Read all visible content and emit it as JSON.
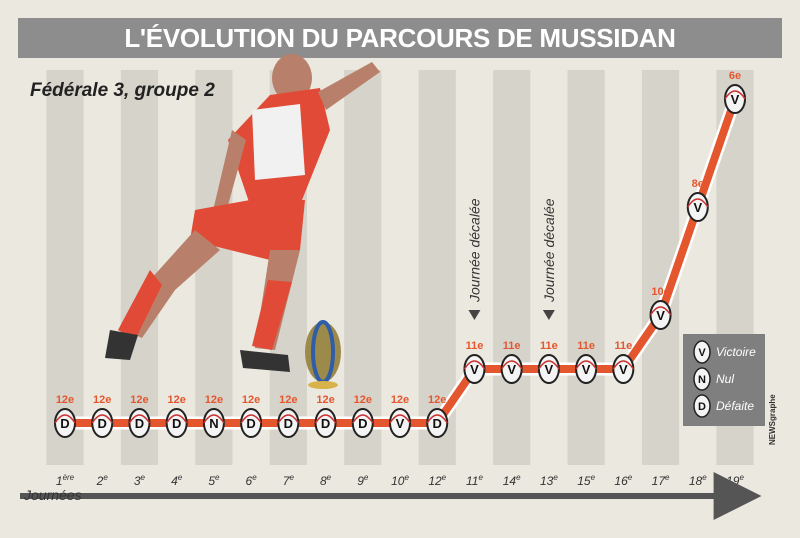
{
  "title": "L'ÉVOLUTION DU PARCOURS DE MUSSIDAN",
  "subtitle": "Fédérale 3, groupe 2",
  "side_credit": "NEWSgraphe",
  "colors": {
    "line": "#e4572e",
    "title_bg": "#8d8d8d",
    "stripe": "#d6d3cb",
    "legend_bg": "#7f7f7f"
  },
  "chart_data": {
    "type": "line",
    "xlabel": "Journées",
    "ylabel": "",
    "y_inverted": true,
    "categories": [
      "1ère",
      "2e",
      "3e",
      "4e",
      "5e",
      "6e",
      "7e",
      "8e",
      "9e",
      "10e",
      "12e",
      "11e",
      "14e",
      "13e",
      "15e",
      "16e",
      "17e",
      "18e",
      "19e"
    ],
    "tick_main": [
      "1",
      "2",
      "3",
      "4",
      "5",
      "6",
      "7",
      "8",
      "9",
      "10",
      "12",
      "11",
      "14",
      "13",
      "15",
      "16",
      "17",
      "18",
      "19"
    ],
    "tick_sup": [
      "ère",
      "e",
      "e",
      "e",
      "e",
      "e",
      "e",
      "e",
      "e",
      "e",
      "e",
      "e",
      "e",
      "e",
      "e",
      "e",
      "e",
      "e",
      "e"
    ],
    "positions": [
      12,
      12,
      12,
      12,
      12,
      12,
      12,
      12,
      12,
      12,
      12,
      11,
      11,
      11,
      11,
      11,
      10,
      8,
      6
    ],
    "position_labels": [
      "12e",
      "12e",
      "12e",
      "12e",
      "12e",
      "12e",
      "12e",
      "12e",
      "12e",
      "12e",
      "12e",
      "11e",
      "11e",
      "11e",
      "11e",
      "11e",
      "10e",
      "8e",
      "6e"
    ],
    "results": [
      "D",
      "D",
      "D",
      "D",
      "N",
      "D",
      "D",
      "D",
      "D",
      "V",
      "D",
      "V",
      "V",
      "V",
      "V",
      "V",
      "V",
      "V",
      "V"
    ],
    "annotations": [
      {
        "text": "Journée décalée",
        "at_index": 11
      },
      {
        "text": "Journée décalée",
        "at_index": 13
      }
    ],
    "legend": [
      {
        "code": "V",
        "label": "Victoire"
      },
      {
        "code": "N",
        "label": "Nul"
      },
      {
        "code": "D",
        "label": "Défaite"
      }
    ],
    "grid": "vertical stripes",
    "legend_position": "right"
  }
}
